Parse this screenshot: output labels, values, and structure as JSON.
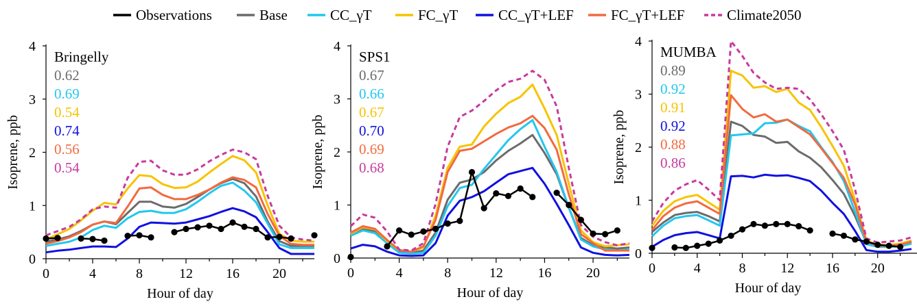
{
  "legend": [
    {
      "label": "Observations",
      "color": "#000000",
      "style": "solid-dots"
    },
    {
      "label": "Base",
      "color": "#6b6b6b",
      "style": "solid"
    },
    {
      "label": "CC_γT",
      "color": "#22c7ef",
      "style": "solid"
    },
    {
      "label": "FC_γT",
      "color": "#f7c300",
      "style": "solid"
    },
    {
      "label": "CC_γT+LEF",
      "color": "#1010e0",
      "style": "solid"
    },
    {
      "label": "FC_γT+LEF",
      "color": "#f26a3e",
      "style": "solid"
    },
    {
      "label": "Climate2050",
      "color": "#c73a9e",
      "style": "dashed"
    }
  ],
  "chart_data": [
    {
      "type": "line",
      "site": "Bringelly",
      "xlabel": "Hour of day",
      "ylabel": "Isoprene, ppb",
      "xlim": [
        0,
        23
      ],
      "ylim": [
        0,
        4
      ],
      "xticks": [
        0,
        4,
        8,
        12,
        16,
        20
      ],
      "yticks": [
        0,
        1,
        2,
        3,
        4
      ],
      "stats": [
        "0.62",
        "0.69",
        "0.54",
        "0.74",
        "0.56",
        "0.54"
      ],
      "series": [
        {
          "name": "Base",
          "values": [
            0.32,
            0.36,
            0.42,
            0.52,
            0.64,
            0.7,
            0.65,
            0.86,
            1.07,
            1.07,
            0.98,
            0.96,
            1.03,
            1.16,
            1.3,
            1.42,
            1.5,
            1.42,
            1.17,
            0.7,
            0.33,
            0.24,
            0.24,
            0.24
          ]
        },
        {
          "name": "CC_γT",
          "values": [
            0.24,
            0.28,
            0.32,
            0.4,
            0.54,
            0.62,
            0.58,
            0.76,
            0.88,
            0.9,
            0.86,
            0.86,
            0.93,
            1.07,
            1.23,
            1.37,
            1.43,
            1.28,
            1.06,
            0.66,
            0.27,
            0.2,
            0.2,
            0.2
          ]
        },
        {
          "name": "FC_γT",
          "values": [
            0.36,
            0.46,
            0.56,
            0.72,
            0.9,
            1.05,
            1.02,
            1.32,
            1.57,
            1.55,
            1.4,
            1.33,
            1.34,
            1.45,
            1.62,
            1.78,
            1.93,
            1.85,
            1.62,
            1.0,
            0.47,
            0.34,
            0.32,
            0.32
          ]
        },
        {
          "name": "CC_γT+LEF",
          "values": [
            0.12,
            0.15,
            0.17,
            0.2,
            0.23,
            0.23,
            0.22,
            0.38,
            0.6,
            0.68,
            0.67,
            0.66,
            0.68,
            0.74,
            0.8,
            0.88,
            0.95,
            0.89,
            0.78,
            0.5,
            0.2,
            0.09,
            0.09,
            0.09
          ]
        },
        {
          "name": "FC_γT+LEF",
          "values": [
            0.28,
            0.33,
            0.4,
            0.5,
            0.64,
            0.7,
            0.67,
            0.98,
            1.32,
            1.34,
            1.2,
            1.12,
            1.12,
            1.2,
            1.3,
            1.43,
            1.53,
            1.48,
            1.34,
            0.84,
            0.43,
            0.28,
            0.26,
            0.26
          ]
        },
        {
          "name": "Climate2050",
          "values": [
            0.44,
            0.52,
            0.6,
            0.74,
            0.93,
            0.98,
            0.96,
            1.52,
            1.82,
            1.84,
            1.66,
            1.58,
            1.58,
            1.68,
            1.83,
            1.95,
            2.05,
            2.0,
            1.87,
            1.18,
            0.62,
            0.4,
            0.36,
            0.34
          ]
        }
      ],
      "observations": [
        0.38,
        0.39,
        null,
        0.38,
        0.37,
        0.34,
        null,
        0.43,
        0.44,
        0.4,
        null,
        0.5,
        0.56,
        0.59,
        0.62,
        0.56,
        0.68,
        0.6,
        0.56,
        0.4,
        0.41,
        0.38,
        null,
        0.44
      ]
    },
    {
      "type": "line",
      "site": "SPS1",
      "xlabel": "Hour of day",
      "ylabel": "Isoprene, ppb",
      "xlim": [
        0,
        23
      ],
      "ylim": [
        0,
        4
      ],
      "xticks": [
        0,
        4,
        8,
        12,
        16,
        20
      ],
      "yticks": [
        0,
        1,
        2,
        3,
        4
      ],
      "stats": [
        "0.67",
        "0.66",
        "0.67",
        "0.70",
        "0.69",
        "0.68"
      ],
      "series": [
        {
          "name": "Base",
          "values": [
            0.45,
            0.55,
            0.5,
            0.3,
            0.12,
            0.1,
            0.14,
            0.48,
            1.1,
            1.42,
            1.48,
            1.62,
            1.84,
            2.02,
            2.16,
            2.32,
            1.98,
            1.58,
            0.95,
            0.38,
            0.24,
            0.2,
            0.18,
            0.2
          ]
        },
        {
          "name": "CC_γT",
          "values": [
            0.42,
            0.52,
            0.47,
            0.28,
            0.1,
            0.08,
            0.1,
            0.42,
            0.98,
            1.32,
            1.38,
            1.68,
            1.95,
            2.22,
            2.43,
            2.6,
            2.1,
            1.62,
            0.95,
            0.35,
            0.22,
            0.16,
            0.14,
            0.16
          ]
        },
        {
          "name": "FC_γT",
          "values": [
            0.46,
            0.58,
            0.54,
            0.32,
            0.15,
            0.12,
            0.2,
            0.8,
            1.7,
            2.1,
            2.14,
            2.48,
            2.72,
            2.92,
            3.04,
            3.27,
            2.82,
            2.32,
            1.4,
            0.52,
            0.3,
            0.22,
            0.24,
            0.26
          ]
        },
        {
          "name": "CC_γT+LEF",
          "values": [
            0.18,
            0.25,
            0.22,
            0.12,
            0.05,
            0.04,
            0.05,
            0.28,
            0.8,
            1.08,
            1.15,
            1.26,
            1.42,
            1.58,
            1.64,
            1.7,
            1.4,
            1.02,
            0.62,
            0.2,
            0.1,
            0.06,
            0.05,
            0.06
          ]
        },
        {
          "name": "FC_γT+LEF",
          "values": [
            0.48,
            0.6,
            0.55,
            0.34,
            0.15,
            0.12,
            0.22,
            0.72,
            1.62,
            2.02,
            2.06,
            2.2,
            2.34,
            2.46,
            2.54,
            2.68,
            2.45,
            2.04,
            1.2,
            0.45,
            0.28,
            0.14,
            0.14,
            0.14
          ]
        },
        {
          "name": "Climate2050",
          "values": [
            0.6,
            0.82,
            0.76,
            0.5,
            0.16,
            0.14,
            0.28,
            1.02,
            2.1,
            2.66,
            2.78,
            2.96,
            3.16,
            3.32,
            3.38,
            3.53,
            3.36,
            2.86,
            1.7,
            0.62,
            0.4,
            0.3,
            0.24,
            0.28
          ]
        }
      ],
      "observations": [
        0.02,
        null,
        null,
        0.22,
        0.52,
        0.44,
        0.5,
        0.55,
        0.65,
        0.7,
        1.62,
        0.94,
        1.22,
        1.17,
        1.31,
        1.15,
        null,
        1.23,
        1.0,
        0.72,
        0.46,
        0.45,
        0.52,
        null
      ]
    },
    {
      "type": "line",
      "site": "MUMBA",
      "xlabel": "Hour of day",
      "ylabel": "Isoprene, ppb",
      "xlim": [
        0,
        23
      ],
      "ylim": [
        0,
        4
      ],
      "xticks": [
        0,
        4,
        8,
        12,
        16,
        20
      ],
      "yticks": [
        0,
        1,
        2,
        3,
        4
      ],
      "stats": [
        "0.89",
        "0.92",
        "0.91",
        "0.92",
        "0.88",
        "0.86"
      ],
      "series": [
        {
          "name": "Base",
          "values": [
            0.4,
            0.58,
            0.72,
            0.76,
            0.78,
            0.7,
            0.6,
            2.48,
            2.4,
            2.23,
            2.2,
            2.08,
            2.1,
            1.92,
            1.8,
            1.62,
            1.38,
            1.12,
            0.7,
            0.2,
            0.14,
            0.14,
            0.15,
            0.2
          ]
        },
        {
          "name": "CC_γT",
          "values": [
            0.32,
            0.52,
            0.66,
            0.7,
            0.72,
            0.62,
            0.52,
            2.22,
            2.24,
            2.26,
            2.45,
            2.46,
            2.52,
            2.4,
            2.3,
            2.0,
            1.72,
            1.36,
            0.78,
            0.17,
            0.12,
            0.12,
            0.13,
            0.18
          ]
        },
        {
          "name": "FC_γT",
          "values": [
            0.52,
            0.8,
            0.98,
            1.06,
            1.1,
            0.96,
            0.82,
            3.44,
            3.35,
            3.12,
            3.15,
            3.04,
            3.1,
            2.84,
            2.7,
            2.38,
            2.02,
            1.65,
            1.0,
            0.24,
            0.16,
            0.16,
            0.18,
            0.24
          ]
        },
        {
          "name": "CC_γT+LEF",
          "values": [
            0.12,
            0.25,
            0.34,
            0.38,
            0.4,
            0.34,
            0.28,
            1.45,
            1.46,
            1.43,
            1.48,
            1.46,
            1.47,
            1.42,
            1.36,
            1.18,
            0.95,
            0.74,
            0.42,
            0.06,
            0.03,
            0.03,
            0.05,
            0.08
          ]
        },
        {
          "name": "FC_γT+LEF",
          "values": [
            0.44,
            0.7,
            0.86,
            0.94,
            0.98,
            0.86,
            0.74,
            2.98,
            2.72,
            2.56,
            2.62,
            2.48,
            2.52,
            2.38,
            2.24,
            1.98,
            1.7,
            1.42,
            0.92,
            0.22,
            0.14,
            0.14,
            0.16,
            0.22
          ]
        },
        {
          "name": "Climate2050",
          "values": [
            0.6,
            0.95,
            1.18,
            1.3,
            1.38,
            1.2,
            1.0,
            4.0,
            3.72,
            3.4,
            3.22,
            3.1,
            3.12,
            3.1,
            2.9,
            2.62,
            2.3,
            1.95,
            1.2,
            0.28,
            0.2,
            0.22,
            0.24,
            0.3
          ]
        }
      ],
      "observations": [
        0.1,
        null,
        0.11,
        0.1,
        0.14,
        0.18,
        0.24,
        0.33,
        0.45,
        0.55,
        0.52,
        0.55,
        0.55,
        0.51,
        0.43,
        null,
        0.37,
        0.33,
        0.26,
        0.22,
        0.16,
        0.14,
        0.12,
        null
      ]
    }
  ]
}
